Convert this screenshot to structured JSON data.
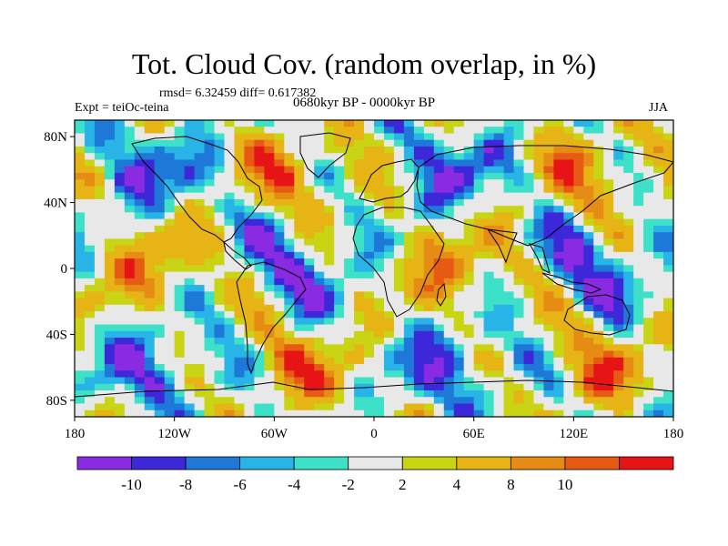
{
  "header": {
    "title": "Tot. Cloud Cov. (random overlap, in %)",
    "stats": "rmsd= 6.32459 diff= 0.617382",
    "experiment": "Expt = teiOc-teina",
    "period": "0680kyr BP - 0000kyr BP",
    "season": "JJA"
  },
  "axes": {
    "lat_ticks": [
      {
        "label": "80N",
        "value": 80
      },
      {
        "label": "40N",
        "value": 40
      },
      {
        "label": "0",
        "value": 0
      },
      {
        "label": "40S",
        "value": -40
      },
      {
        "label": "80S",
        "value": -80
      }
    ],
    "lon_ticks": [
      {
        "label": "180",
        "value": -180
      },
      {
        "label": "120W",
        "value": -120
      },
      {
        "label": "60W",
        "value": -60
      },
      {
        "label": "0",
        "value": 0
      },
      {
        "label": "60E",
        "value": 60
      },
      {
        "label": "120E",
        "value": 120
      },
      {
        "label": "180",
        "value": 180
      }
    ],
    "lat_range": [
      -90,
      90
    ],
    "lon_range": [
      -180,
      180
    ]
  },
  "colorbar": {
    "colors": [
      "#8a2be2",
      "#3c28d8",
      "#1e78d8",
      "#28b4e6",
      "#3ce1c8",
      "#e8e8e8",
      "#c8d414",
      "#e6b414",
      "#e68c14",
      "#e65a14",
      "#e61414"
    ],
    "labels": [
      "-10",
      "-8",
      "-6",
      "-4",
      "-2",
      "2",
      "4",
      "8",
      "10"
    ]
  },
  "field_levels": [
    -12,
    -10,
    -8,
    -6,
    -4,
    -2,
    2,
    4,
    8,
    10,
    12
  ]
}
